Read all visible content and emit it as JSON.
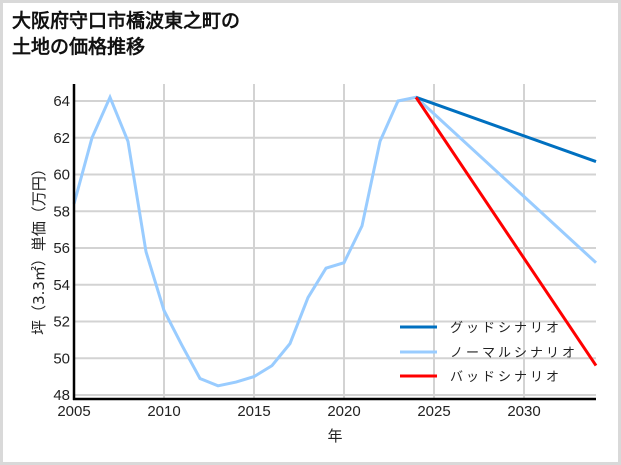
{
  "title_line1": "大阪府守口市橋波東之町の",
  "title_line2": "土地の価格推移",
  "chart_data": {
    "type": "line",
    "title": "大阪府守口市橋波東之町の土地の価格推移",
    "xlabel": "年",
    "ylabel": "坪（3.3㎡）単価（万円）",
    "xlim": [
      2005,
      2034
    ],
    "ylim": [
      47.8,
      65
    ],
    "xticks": [
      2005,
      2010,
      2015,
      2020,
      2025,
      2030
    ],
    "yticks": [
      48,
      50,
      52,
      54,
      56,
      58,
      60,
      62,
      64
    ],
    "grid": true,
    "legend_position": "lower right",
    "series": [
      {
        "name": "グッドシナリオ",
        "color": "#0070c0",
        "x": [
          2024,
          2034
        ],
        "y": [
          64.2,
          60.7
        ]
      },
      {
        "name": "ノーマルシナリオ",
        "color": "#99ccff",
        "x": [
          2005,
          2006,
          2007,
          2008,
          2009,
          2010,
          2011,
          2012,
          2013,
          2014,
          2015,
          2016,
          2017,
          2018,
          2019,
          2020,
          2021,
          2022,
          2023,
          2024,
          2034
        ],
        "y": [
          58.4,
          62.0,
          64.2,
          61.8,
          55.8,
          52.6,
          50.7,
          48.9,
          48.5,
          48.7,
          49.0,
          49.6,
          50.8,
          53.3,
          54.9,
          55.2,
          57.2,
          61.8,
          64.0,
          64.2,
          55.2
        ]
      },
      {
        "name": "バッドシナリオ",
        "color": "#ff0000",
        "x": [
          2024,
          2034
        ],
        "y": [
          64.2,
          49.6
        ]
      }
    ]
  }
}
